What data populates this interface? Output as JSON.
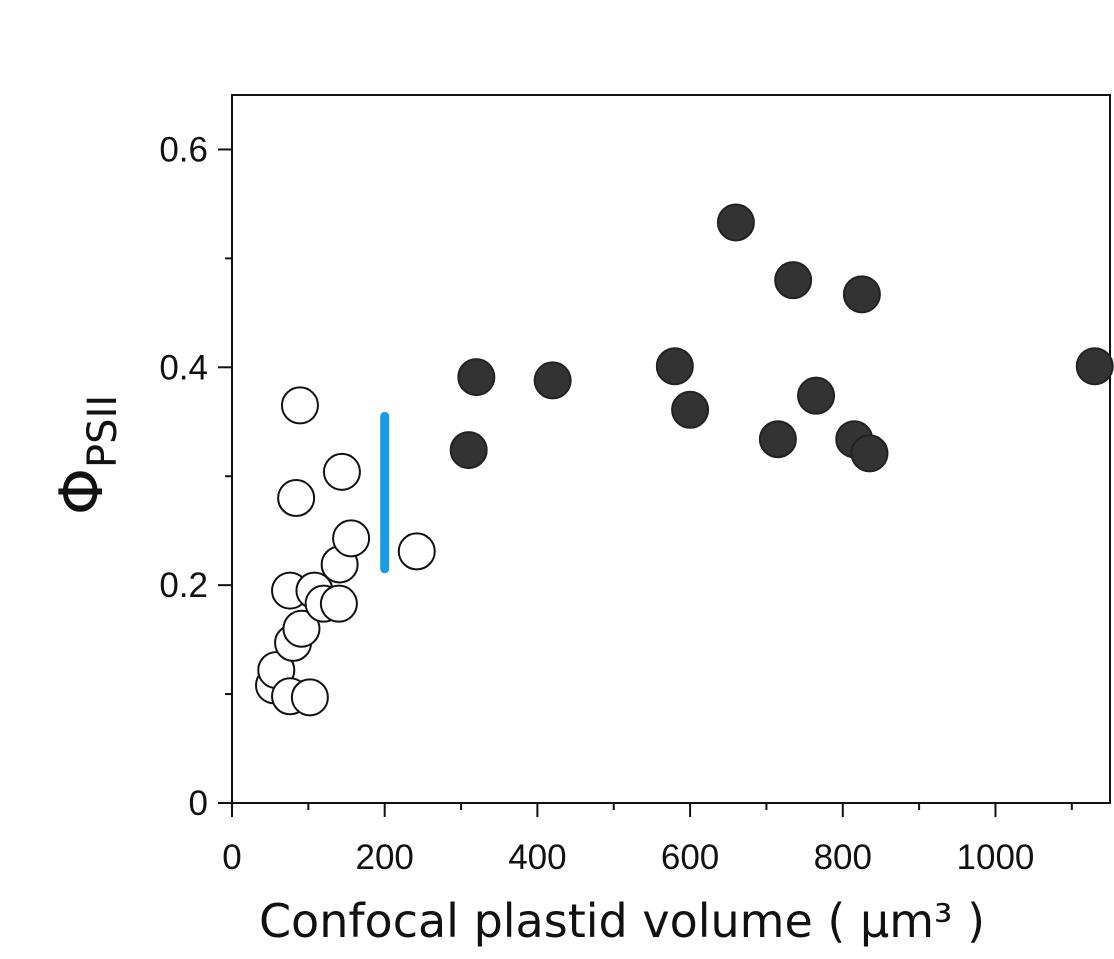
{
  "chart_data": {
    "type": "scatter",
    "title": "",
    "xlabel": "Confocal plastid volume ( µm³ )",
    "ylabel_symbol": "Φ",
    "ylabel_subscript": "PSII",
    "xlim": [
      0,
      1150
    ],
    "ylim": [
      0,
      0.65
    ],
    "x_ticks": [
      0,
      200,
      400,
      600,
      800,
      1000
    ],
    "y_ticks": [
      0,
      0.2,
      0.4,
      0.6
    ],
    "x_tick_labels": [
      "0",
      "200",
      "400",
      "600",
      "800",
      "1000"
    ],
    "y_tick_labels": [
      "0",
      "0.2",
      "0.4",
      "0.6"
    ],
    "grid": false,
    "series": [
      {
        "marker": "open-circle",
        "color": "#ffffff",
        "edge_color": "#111111",
        "points": [
          {
            "x": 55,
            "y": 0.108
          },
          {
            "x": 58,
            "y": 0.122
          },
          {
            "x": 76,
            "y": 0.098
          },
          {
            "x": 80,
            "y": 0.147
          },
          {
            "x": 76,
            "y": 0.195
          },
          {
            "x": 84,
            "y": 0.28
          },
          {
            "x": 89,
            "y": 0.365
          },
          {
            "x": 91,
            "y": 0.16
          },
          {
            "x": 102,
            "y": 0.097
          },
          {
            "x": 108,
            "y": 0.195
          },
          {
            "x": 120,
            "y": 0.183
          },
          {
            "x": 140,
            "y": 0.183
          },
          {
            "x": 141,
            "y": 0.219
          },
          {
            "x": 144,
            "y": 0.304
          },
          {
            "x": 156,
            "y": 0.243
          },
          {
            "x": 242,
            "y": 0.231
          }
        ]
      },
      {
        "marker": "filled-circle",
        "color": "#333333",
        "edge_color": "#222222",
        "points": [
          {
            "x": 310,
            "y": 0.324
          },
          {
            "x": 320,
            "y": 0.391
          },
          {
            "x": 420,
            "y": 0.388
          },
          {
            "x": 580,
            "y": 0.401
          },
          {
            "x": 600,
            "y": 0.361
          },
          {
            "x": 660,
            "y": 0.533
          },
          {
            "x": 715,
            "y": 0.334
          },
          {
            "x": 735,
            "y": 0.48
          },
          {
            "x": 765,
            "y": 0.374
          },
          {
            "x": 815,
            "y": 0.334
          },
          {
            "x": 825,
            "y": 0.467
          },
          {
            "x": 835,
            "y": 0.321
          },
          {
            "x": 1130,
            "y": 0.401
          }
        ]
      }
    ],
    "annotations": [
      {
        "type": "vertical-line",
        "x": 200,
        "y_from": 0.215,
        "y_to": 0.355,
        "color": "#1a9be6"
      }
    ]
  }
}
